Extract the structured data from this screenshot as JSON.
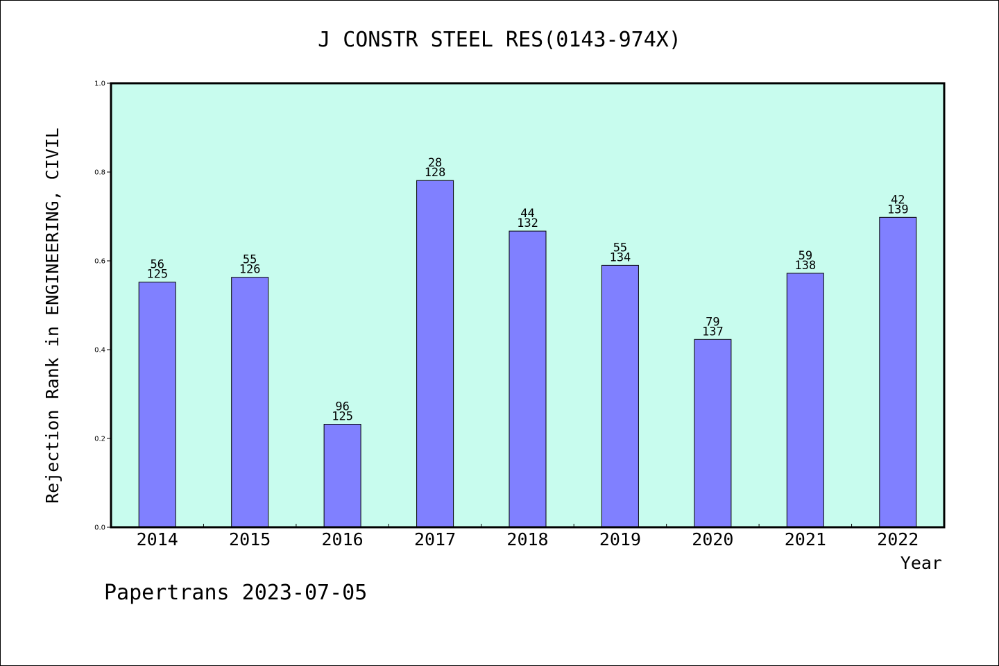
{
  "chart_data": {
    "type": "bar",
    "title": "J CONSTR STEEL RES(0143-974X)",
    "xlabel": "Year",
    "ylabel": "Rejection Rank in ENGINEERING, CIVIL",
    "ylim": [
      0,
      1.0
    ],
    "yticks": [
      "0.0",
      "0.2",
      "0.4",
      "0.6",
      "0.8",
      "1.0"
    ],
    "categories": [
      "2014",
      "2015",
      "2016",
      "2017",
      "2018",
      "2019",
      "2020",
      "2021",
      "2022"
    ],
    "values": [
      0.552,
      0.563,
      0.232,
      0.781,
      0.667,
      0.59,
      0.423,
      0.572,
      0.698
    ],
    "label_top": [
      "56",
      "55",
      "96",
      "28",
      "44",
      "55",
      "79",
      "59",
      "42"
    ],
    "label_bottom": [
      "125",
      "126",
      "125",
      "128",
      "132",
      "134",
      "137",
      "138",
      "139"
    ],
    "grid": false,
    "colors": {
      "plot_background": "#c8fcee",
      "bar_fill": "#8080ff",
      "bar_stroke": "#000000"
    }
  },
  "footer": "Papertrans 2023-07-05"
}
